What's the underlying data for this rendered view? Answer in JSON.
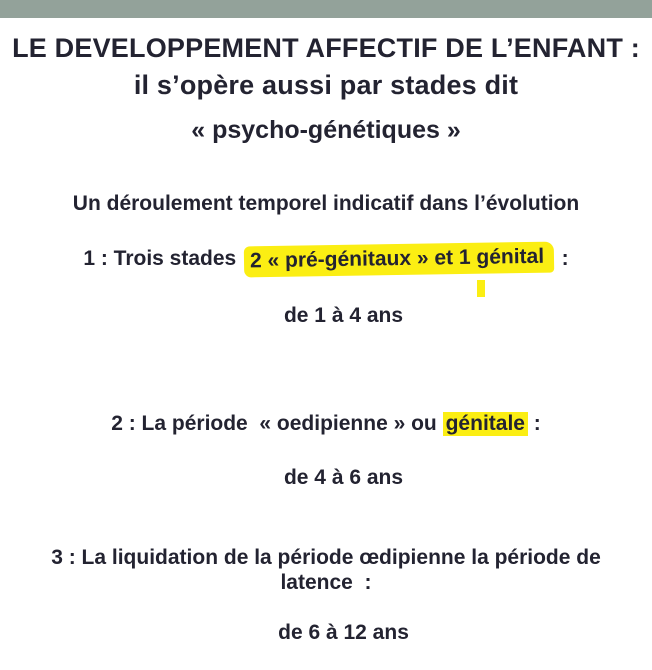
{
  "slide": {
    "title": {
      "line1": "LE DEVELOPPEMENT AFFECTIF DE L’ENFANT : il s’opère aussi par stades dit",
      "line2": "« psycho-génétiques »"
    },
    "subtitle": "Un déroulement temporel indicatif dans l’évolution",
    "items": [
      {
        "prefix": "1 : Trois stades  ",
        "highlight": "2 « pré-génitaux » et 1 génital",
        "suffix": "  :",
        "duration": "de 1 à 4 ans"
      },
      {
        "prefix": "2 : La période  « oedipienne » ou ",
        "highlight": "génitale",
        "suffix": " :",
        "duration": "de 4 à 6 ans"
      },
      {
        "line1": "3 : La liquidation de la période œdipienne la période de",
        "line2": "latence  :",
        "duration": "de 6 à 12 ans"
      }
    ]
  },
  "colors": {
    "top_bar": "#93a29a",
    "text": "#232331",
    "highlight": "#fbee13"
  }
}
